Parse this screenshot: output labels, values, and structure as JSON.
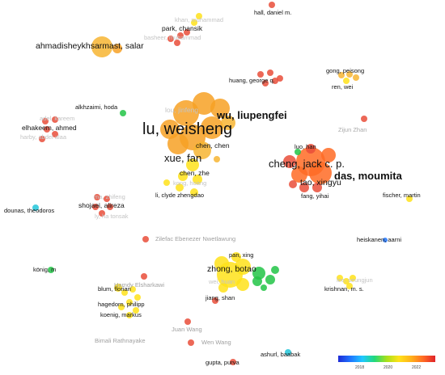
{
  "authors": [
    {
      "label": "lu, weisheng",
      "color": "#f7a124"
    },
    {
      "label": "wu, liupengfei",
      "color": "#f7a124"
    },
    {
      "label": "xue, fan",
      "color": "#f7a124"
    },
    {
      "label": "chen, chen",
      "color": "#f7a124"
    },
    {
      "label": "chen, zhe",
      "color": "#ffe21a"
    },
    {
      "label": "li, clyde zhengdao",
      "color": "#ffe21a"
    },
    {
      "label": "cheng, jack c. p.",
      "color": "#ff6b24"
    },
    {
      "label": "das, moumita",
      "color": "#ff6b24"
    },
    {
      "label": "tao, xingyu",
      "color": "#ff6b24"
    },
    {
      "label": "luo, han",
      "color": "#22c447"
    },
    {
      "label": "fang, yihai",
      "color": "#ff6b24"
    },
    {
      "label": "fischer, martin",
      "color": "#ffe21a"
    },
    {
      "label": "ahmadisheykhsarmast, salar",
      "color": "#f7b532"
    },
    {
      "label": "park, chansik",
      "color": "#e94e3a"
    },
    {
      "label": "hall, daniel m.",
      "color": "#e94e3a"
    },
    {
      "label": "gong, peisong",
      "color": "#f7b532"
    },
    {
      "label": "ren, wei",
      "color": "#f7b532"
    },
    {
      "label": "huang, george q.",
      "color": "#e94e3a"
    },
    {
      "label": "alkhzaimi, hoda",
      "color": "#22c447"
    },
    {
      "label": "elhakeem, ahmed",
      "color": "#e94e3a"
    },
    {
      "label": "Zijun Zhan",
      "color": "#e94e3a"
    },
    {
      "label": "shojaei, alireza",
      "color": "#e94e3a"
    },
    {
      "label": "dounas, theodoros",
      "color": "#22c6d9"
    },
    {
      "label": "zhong, botao",
      "color": "#ffe21a"
    },
    {
      "label": "pan, xing",
      "color": "#ffe21a"
    },
    {
      "label": "jiang, shan",
      "color": "#ffe21a"
    },
    {
      "label": "Zilefac Ebenezer Nwetlawung",
      "color": "#e94e3a"
    },
    {
      "label": "heiskanen, aarni",
      "color": "#1f74ff"
    },
    {
      "label": "könig, m",
      "color": "#22c447"
    },
    {
      "label": "Hamdy Elsharkawi",
      "color": "#e94e3a"
    },
    {
      "label": "blum, florian",
      "color": "#ffe21a"
    },
    {
      "label": "hagedorn, philipp",
      "color": "#ffe21a"
    },
    {
      "label": "koenig, markus",
      "color": "#ffe21a"
    },
    {
      "label": "krishnan, m. s.",
      "color": "#ffe21a"
    },
    {
      "label": "Juan Wang",
      "color": "#e94e3a"
    },
    {
      "label": "Bimali Rathnayake",
      "color": "#e94e3a"
    },
    {
      "label": "Wen Wang",
      "color": "#e94e3a"
    },
    {
      "label": "ashurl, baabak",
      "color": "#22c6d9"
    },
    {
      "label": "gupta, purva",
      "color": "#e94e3a"
    }
  ],
  "faint_labels": [
    "khan, muhammad",
    "basheer, muhammad",
    "adel, kareem",
    "harby, abdel alaa",
    "lou, jinfeng",
    "kong, hoang",
    "ma, zhifeng",
    "ly, ha tonsak",
    "wei, huan",
    "lee, seungjun"
  ],
  "legend": {
    "ticks": [
      "2018",
      "2020",
      "2022"
    ]
  }
}
